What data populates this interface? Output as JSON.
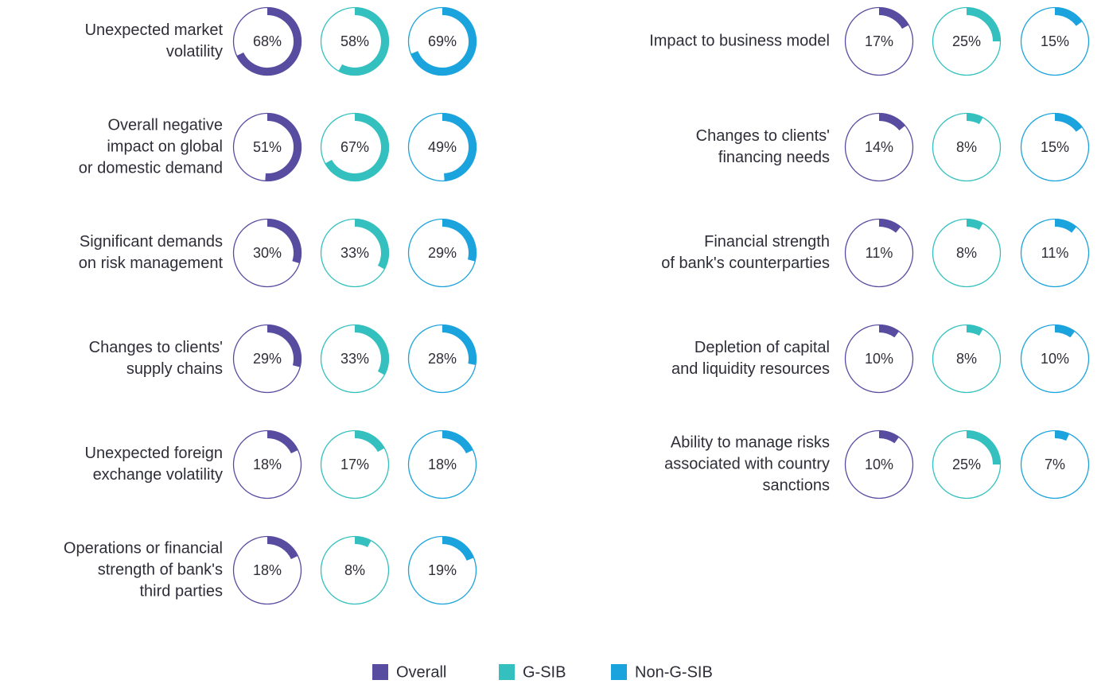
{
  "chart_data": {
    "type": "donut",
    "categories": [
      "Unexpected market\nvolatility",
      "Overall negative\nimpact on global\nor domestic demand",
      "Significant demands\non risk management",
      "Changes to clients'\nsupply chains",
      "Unexpected foreign\nexchange volatility",
      "Operations or financial\nstrength of bank's\nthird parties",
      "Impact to business model",
      "Changes to clients'\nfinancing needs",
      "Financial strength\nof bank's counterparties",
      "Depletion of capital\nand liquidity resources",
      "Ability to manage risks\nassociated with country\nsanctions"
    ],
    "ylim": [
      0,
      100
    ],
    "series": [
      {
        "name": "Overall",
        "color": "#574ca0",
        "values": [
          68,
          51,
          30,
          29,
          18,
          18,
          17,
          14,
          11,
          10,
          10
        ],
        "value_labels": [
          "68%",
          "51%",
          "30%",
          "29%",
          "18%",
          "18%",
          "17%",
          "14%",
          "11%",
          "10%",
          "10%"
        ]
      },
      {
        "name": "G-SIB",
        "color": "#33c0bf",
        "values": [
          58,
          67,
          33,
          33,
          17,
          8,
          25,
          8,
          8,
          8,
          25
        ],
        "value_labels": [
          "58%",
          "67%",
          "33%",
          "33%",
          "17%",
          "8%",
          "25%",
          "8%",
          "8%",
          "8%",
          "25%"
        ]
      },
      {
        "name": "Non-G-SIB",
        "color": "#1ba3dd",
        "values": [
          69,
          49,
          29,
          28,
          18,
          19,
          15,
          15,
          11,
          10,
          7
        ],
        "value_labels": [
          "69%",
          "49%",
          "29%",
          "28%",
          "18%",
          "19%",
          "15%",
          "15%",
          "11%",
          "10%",
          "7%"
        ]
      }
    ]
  }
}
